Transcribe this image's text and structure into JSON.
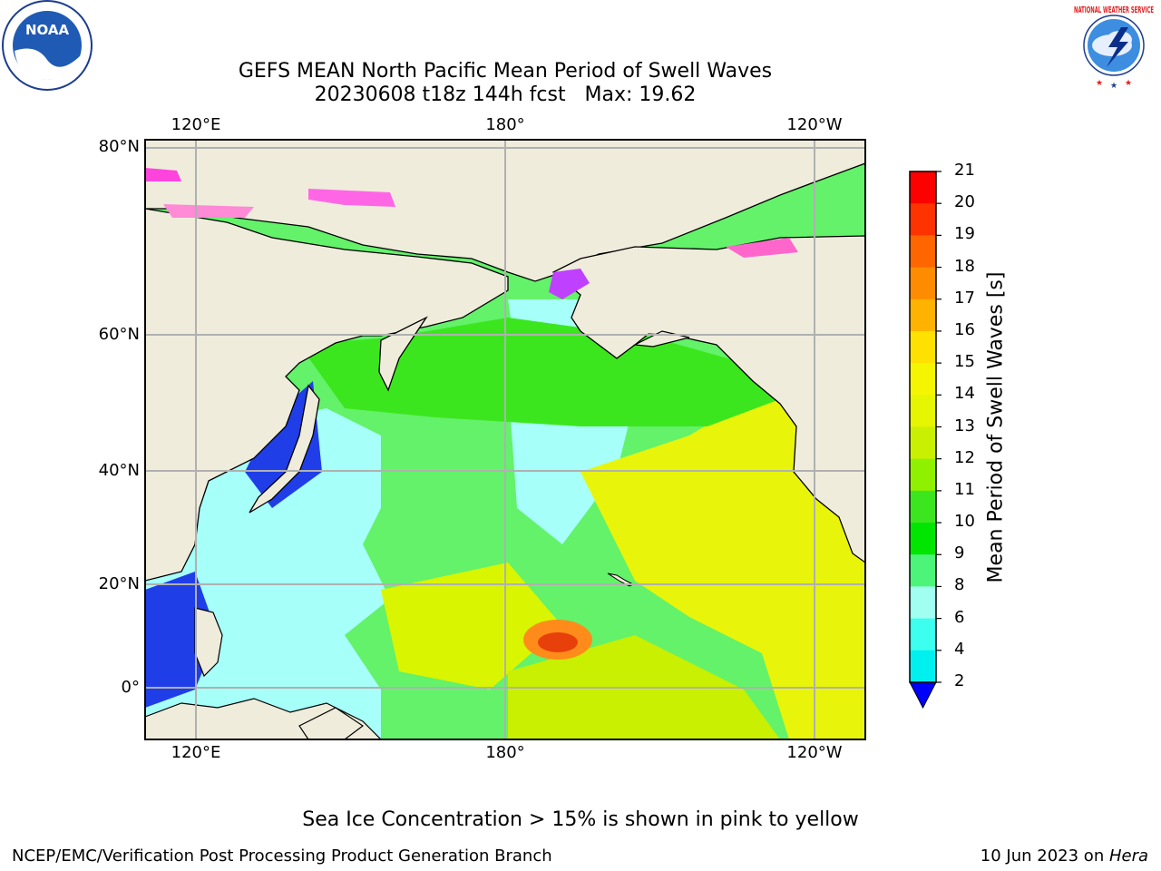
{
  "title_line1": "GEFS MEAN North Pacific Mean Period of Swell Waves",
  "title_line2": "20230608 t18z 144h fcst   Max: 19.62",
  "map": {
    "lon_labels_top": [
      "120°E",
      "180°",
      "120°W"
    ],
    "lon_labels_bottom": [
      "120°E",
      "180°",
      "120°W"
    ],
    "lat_labels": [
      "80°N",
      "60°N",
      "40°N",
      "20°N",
      "0°"
    ],
    "colors": {
      "land": "#efecdc",
      "ocean_mid": "#63f26a",
      "gridline": "#b0b0b0"
    }
  },
  "colorbar": {
    "label": "Mean Period of Swell Waves [s]",
    "ticks": [
      "21",
      "20",
      "19",
      "18",
      "17",
      "16",
      "15",
      "14",
      "13",
      "12",
      "11",
      "10",
      "9",
      "8",
      "6",
      "4",
      "2"
    ],
    "colors_top_to_bottom": [
      "#ff0000",
      "#ff3300",
      "#ff6600",
      "#ff8c00",
      "#ffb300",
      "#ffe100",
      "#f5f500",
      "#e6f500",
      "#c8f000",
      "#8ff000",
      "#3ce61e",
      "#00e600",
      "#4cf57a",
      "#a0fff0",
      "#3cfff0",
      "#00f0f0",
      "#0078ff"
    ],
    "under_color": "#0000ff"
  },
  "footnote": "Sea Ice Concentration > 15% is shown in pink to yellow",
  "credit": "NCEP/EMC/Verification Post Processing Product Generation Branch",
  "date": {
    "text": "10 Jun 2023 on ",
    "host": "Hera"
  },
  "logos": {
    "left": "NOAA",
    "right": "NATIONAL WEATHER SERVICE"
  }
}
